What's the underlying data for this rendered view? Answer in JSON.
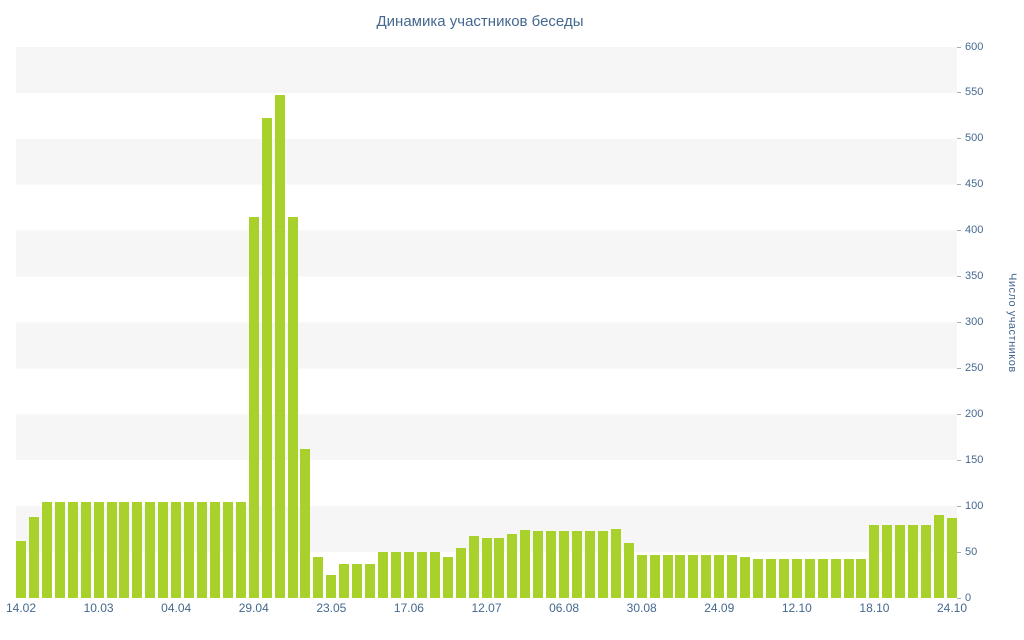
{
  "title": "Динамика участников беседы",
  "colors": {
    "bar": "#a9d12c",
    "text": "#45688e",
    "stripe": "#f6f6f6",
    "background": "#ffffff"
  },
  "chart_data": {
    "type": "bar",
    "title": "Динамика участников беседы",
    "xlabel": "",
    "ylabel": "Число участников",
    "ylim": [
      0,
      600
    ],
    "y_ticks": [
      0,
      50,
      100,
      150,
      200,
      250,
      300,
      350,
      400,
      450,
      500,
      550,
      600
    ],
    "grid": "alternating horizontal bands, legend off",
    "x_tick_labels": [
      "14.02",
      "10.03",
      "04.04",
      "29.04",
      "23.05",
      "17.06",
      "12.07",
      "06.08",
      "30.08",
      "24.09",
      "12.10",
      "18.10",
      "24.10"
    ],
    "x_tick_every_n_bars": 6,
    "values": [
      62,
      88,
      105,
      105,
      105,
      105,
      105,
      105,
      105,
      105,
      105,
      105,
      105,
      105,
      105,
      105,
      105,
      105,
      415,
      523,
      548,
      415,
      162,
      45,
      25,
      37,
      37,
      37,
      50,
      50,
      50,
      50,
      50,
      45,
      55,
      67,
      65,
      65,
      70,
      74,
      73,
      73,
      73,
      73,
      73,
      73,
      75,
      60,
      47,
      47,
      47,
      47,
      47,
      47,
      47,
      47,
      45,
      43,
      43,
      43,
      43,
      43,
      43,
      43,
      43,
      43,
      80,
      80,
      80,
      80,
      80,
      90,
      87
    ]
  }
}
